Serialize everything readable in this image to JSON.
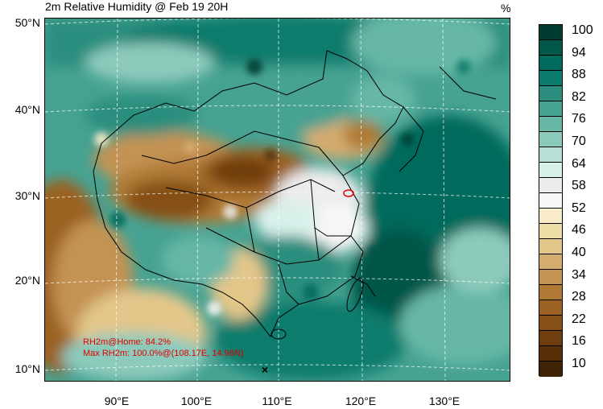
{
  "title": "2m Relative Humidity @ Feb 19 20H",
  "unit": "%",
  "lat_labels": [
    "50°N",
    "40°N",
    "30°N",
    "20°N",
    "10°N"
  ],
  "lon_labels": [
    "90°E",
    "100°E",
    "110°E",
    "120°E",
    "130°E"
  ],
  "colorbar": {
    "labels": [
      "100",
      "94",
      "88",
      "82",
      "76",
      "70",
      "64",
      "58",
      "52",
      "46",
      "40",
      "34",
      "28",
      "22",
      "16",
      "10"
    ],
    "colors": [
      "#003d30",
      "#00574a",
      "#006a5c",
      "#0b7c6c",
      "#2b8e7e",
      "#46a292",
      "#66b7a6",
      "#8ccabc",
      "#b6e0d6",
      "#d8f0ea",
      "#ececec",
      "#f7f7f7",
      "#f8ecc8",
      "#eedca6",
      "#e3c68a",
      "#d4ac70",
      "#c39352",
      "#b07a36",
      "#9b6224",
      "#864f18",
      "#6f3e0f",
      "#583008",
      "#402204"
    ]
  },
  "annotations": {
    "home": "RH2m@Home: 84.2%",
    "max": "Max RH2m: 100.0%@(108.17E, 14.96N)"
  }
}
